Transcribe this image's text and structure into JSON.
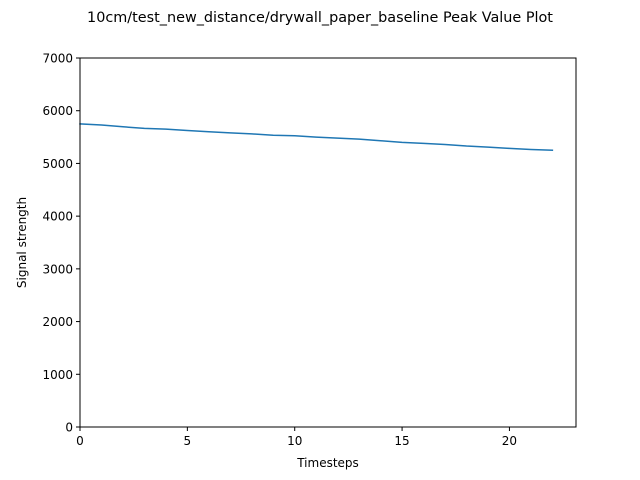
{
  "chart_data": {
    "type": "line",
    "title": "10cm/test_new_distance/drywall_paper_baseline Peak Value Plot",
    "xlabel": "Timesteps",
    "ylabel": "Signal strength",
    "xlim": [
      0,
      23.1
    ],
    "ylim": [
      0,
      7000
    ],
    "xticks": [
      0,
      5,
      10,
      15,
      20
    ],
    "yticks": [
      0,
      1000,
      2000,
      3000,
      4000,
      5000,
      6000,
      7000
    ],
    "grid": false,
    "legend": "none",
    "series": [
      {
        "color": "#1f77b4",
        "x": [
          0,
          1,
          2,
          3,
          4,
          5,
          6,
          7,
          8,
          9,
          10,
          11,
          12,
          13,
          14,
          15,
          16,
          17,
          18,
          19,
          20,
          21,
          22
        ],
        "values": [
          5750,
          5730,
          5695,
          5665,
          5650,
          5625,
          5600,
          5580,
          5560,
          5535,
          5525,
          5500,
          5480,
          5460,
          5430,
          5400,
          5380,
          5360,
          5330,
          5310,
          5285,
          5265,
          5250
        ]
      }
    ]
  }
}
